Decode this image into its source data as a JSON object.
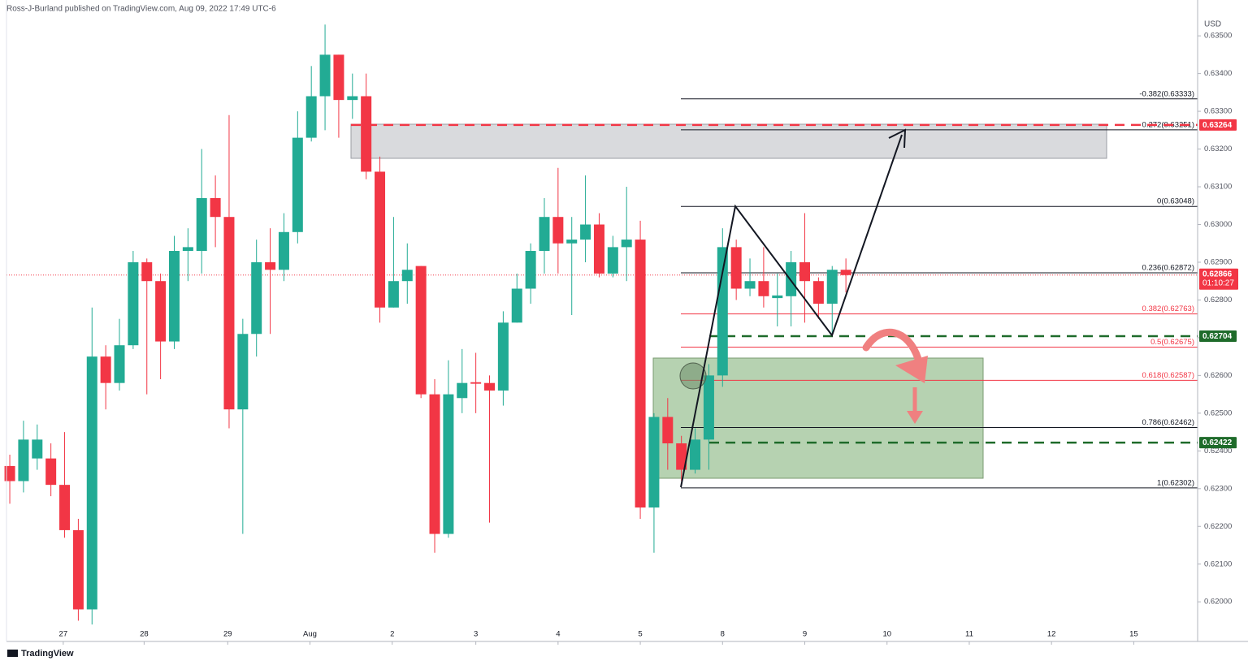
{
  "chart_data": {
    "type": "candlestick",
    "header": "Ross-J-Burland published on TradingView.com, Aug 09, 2022 17:49 UTC-6",
    "currency": "USD",
    "brand": "TradingView",
    "up_color": "#22ab94",
    "down_color": "#f23645",
    "grid": false,
    "open": [
      0.6236,
      0.6232,
      0.6238,
      0.6238,
      0.6231,
      0.6219,
      0.6198,
      0.6265,
      0.6258,
      0.6268,
      0.629,
      0.6285,
      0.6269,
      0.6293,
      0.6293,
      0.6307,
      0.6302,
      0.6251,
      0.6271,
      0.629,
      0.6288,
      0.6298,
      0.6323,
      0.6334,
      0.6345,
      0.6333,
      0.6334,
      0.6314,
      0.6278,
      0.6285,
      0.6289,
      0.6255,
      0.6218,
      0.6254,
      0.62582,
      0.6258,
      0.6256,
      0.6274,
      0.6283,
      0.6293,
      0.6302,
      0.6295,
      0.6296,
      0.63,
      0.6287,
      0.6294,
      0.6296,
      0.6225,
      0.6249,
      0.6242,
      0.6235,
      0.6243,
      0.626,
      0.6294,
      0.6283,
      0.6285,
      0.62805,
      0.6281,
      0.629,
      0.6285,
      0.6279,
      0.6288
    ],
    "high": [
      0.6239,
      0.6248,
      0.6247,
      0.6242,
      0.6245,
      0.6222,
      0.6278,
      0.6268,
      0.6275,
      0.6293,
      0.6291,
      0.6287,
      0.6297,
      0.6299,
      0.632,
      0.6313,
      0.6329,
      0.6275,
      0.6296,
      0.6299,
      0.6303,
      0.633,
      0.6342,
      0.6353,
      0.6345,
      0.634,
      0.634,
      0.6318,
      0.6302,
      0.6295,
      0.6289,
      0.6259,
      0.6264,
      0.6267,
      0.6266,
      0.626,
      0.6277,
      0.6287,
      0.6295,
      0.6307,
      0.6315,
      0.6302,
      0.6313,
      0.6303,
      0.6297,
      0.631,
      0.6301,
      0.625,
      0.6254,
      0.6244,
      0.6246,
      0.6263,
      0.6299,
      0.6296,
      0.6291,
      0.6294,
      0.6287,
      0.6293,
      0.6303,
      0.6286,
      0.6289,
      0.6291
    ],
    "low": [
      0.6226,
      0.6229,
      0.6235,
      0.6228,
      0.6217,
      0.6195,
      0.6194,
      0.6251,
      0.6256,
      0.6267,
      0.6255,
      0.6259,
      0.6267,
      0.6285,
      0.6287,
      0.6294,
      0.6246,
      0.6218,
      0.6265,
      0.6271,
      0.6285,
      0.6295,
      0.6322,
      0.6325,
      0.6323,
      0.6328,
      0.6312,
      0.6274,
      0.6278,
      0.6279,
      0.6254,
      0.6213,
      0.6217,
      0.625,
      0.625,
      0.6221,
      0.6252,
      0.6274,
      0.6279,
      0.6287,
      0.6287,
      0.6276,
      0.629,
      0.6286,
      0.6286,
      0.6285,
      0.6222,
      0.6213,
      0.6235,
      0.6232,
      0.6234,
      0.6235,
      0.6257,
      0.628,
      0.6281,
      0.6278,
      0.6273,
      0.6273,
      0.6274,
      0.6275,
      0.6271,
      0.6282
    ],
    "close": [
      0.6232,
      0.6243,
      0.6243,
      0.6231,
      0.6219,
      0.6198,
      0.6265,
      0.6258,
      0.6268,
      0.629,
      0.6285,
      0.6269,
      0.6293,
      0.6294,
      0.6307,
      0.6302,
      0.6251,
      0.6271,
      0.629,
      0.6288,
      0.6298,
      0.6323,
      0.6334,
      0.6345,
      0.6333,
      0.6334,
      0.6314,
      0.6278,
      0.6285,
      0.6288,
      0.6255,
      0.6218,
      0.6255,
      0.6258,
      0.62578,
      0.6256,
      0.6274,
      0.6283,
      0.6293,
      0.6302,
      0.6295,
      0.6296,
      0.63,
      0.6287,
      0.6294,
      0.6296,
      0.6225,
      0.6249,
      0.6242,
      0.6235,
      0.6243,
      0.626,
      0.6294,
      0.6283,
      0.6285,
      0.6281,
      0.62812,
      0.629,
      0.6285,
      0.6279,
      0.6288,
      0.62866
    ],
    "xlim": [
      -0.24,
      86.66
    ],
    "xticks": [
      {
        "value": 3.9,
        "label": "27"
      },
      {
        "value": 9.8,
        "label": "28"
      },
      {
        "value": 15.9,
        "label": "29"
      },
      {
        "value": 21.9,
        "label": "Aug"
      },
      {
        "value": 27.9,
        "label": "2"
      },
      {
        "value": 34,
        "label": "3"
      },
      {
        "value": 40,
        "label": "4"
      },
      {
        "value": 46,
        "label": "5"
      },
      {
        "value": 52,
        "label": "8"
      },
      {
        "value": 58,
        "label": "9"
      },
      {
        "value": 64,
        "label": "10"
      },
      {
        "value": 70,
        "label": "11"
      },
      {
        "value": 76,
        "label": "12"
      },
      {
        "value": 82,
        "label": "15"
      }
    ],
    "ylim": [
      0.61895,
      0.63595
    ],
    "yticks": [
      {
        "value": 0.62,
        "label": "0.62000"
      },
      {
        "value": 0.621,
        "label": "0.62100"
      },
      {
        "value": 0.622,
        "label": "0.62200"
      },
      {
        "value": 0.623,
        "label": "0.62300"
      },
      {
        "value": 0.624,
        "label": "0.62400"
      },
      {
        "value": 0.625,
        "label": "0.62500"
      },
      {
        "value": 0.626,
        "label": "0.62600"
      },
      {
        "value": 0.627,
        "label": "0.62700"
      },
      {
        "value": 0.628,
        "label": "0.62800"
      },
      {
        "value": 0.629,
        "label": "0.62900"
      },
      {
        "value": 0.63,
        "label": "0.63000"
      },
      {
        "value": 0.631,
        "label": "0.63100"
      },
      {
        "value": 0.632,
        "label": "0.63200"
      },
      {
        "value": 0.633,
        "label": "0.63300"
      },
      {
        "value": 0.634,
        "label": "0.63400"
      },
      {
        "value": 0.635,
        "label": "0.63500"
      }
    ],
    "fib_levels": [
      {
        "label": "-0.382(0.63333)",
        "value": 0.63333,
        "color": "#131722"
      },
      {
        "label": "0.272(0.63251)",
        "value": 0.63251,
        "color": "#131722"
      },
      {
        "label": "0(0.63048)",
        "value": 0.63048,
        "color": "#131722"
      },
      {
        "label": "0.236(0.62872)",
        "value": 0.62872,
        "color": "#131722"
      },
      {
        "label": "0.382(0.62763)",
        "value": 0.62763,
        "color": "#f23645"
      },
      {
        "label": "0.5(0.62675)",
        "value": 0.62675,
        "color": "#f23645"
      },
      {
        "label": "0.618(0.62587)",
        "value": 0.62587,
        "color": "#f23645"
      },
      {
        "label": "0.786(0.62462)",
        "value": 0.62462,
        "color": "#131722"
      },
      {
        "label": "1(0.62302)",
        "value": 0.62302,
        "color": "#131722"
      }
    ],
    "levels": [
      {
        "value": 0.63264,
        "color": "#f23645"
      },
      {
        "value": 0.62704,
        "color": "#1e6b2a"
      },
      {
        "value": 0.62422,
        "color": "#1e6b2a"
      }
    ],
    "last_price": 0.62866,
    "countdown": "01:10:27"
  }
}
